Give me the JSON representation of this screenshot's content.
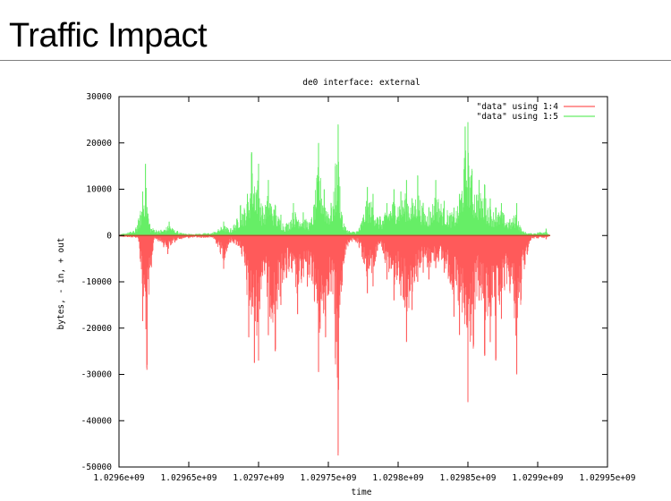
{
  "slide": {
    "title": "Traffic Impact"
  },
  "chart_data": {
    "type": "area",
    "title": "de0 interface: external",
    "xlabel": "time",
    "ylabel": "bytes, - in, + out",
    "xlim": [
      1029600000,
      1029950000
    ],
    "ylim": [
      -50000,
      30000
    ],
    "grid": false,
    "legend_position": "top-right",
    "x_tick_labels": [
      "1.0296e+09",
      "1.02965e+09",
      "1.0297e+09",
      "1.02975e+09",
      "1.0298e+09",
      "1.02985e+09",
      "1.0299e+09",
      "1.02995e+09"
    ],
    "y_tick_labels": [
      "30000",
      "20000",
      "10000",
      "0",
      "-10000",
      "-20000",
      "-30000",
      "-40000",
      "-50000"
    ],
    "y_ticks": [
      30000,
      20000,
      10000,
      0,
      -10000,
      -20000,
      -30000,
      -40000,
      -50000
    ],
    "x_ticks": [
      1029600000,
      1029650000,
      1029700000,
      1029750000,
      1029800000,
      1029850000,
      1029900000,
      1029950000
    ],
    "series": [
      {
        "name": "\"data\" using 1:4",
        "color": "#ff5a5a",
        "peaks": [
          [
            1029600000,
            -300
          ],
          [
            1029614000,
            -700
          ],
          [
            1029617000,
            -18500
          ],
          [
            1029620000,
            -29000
          ],
          [
            1029625000,
            -900
          ],
          [
            1029632000,
            -2500
          ],
          [
            1029635000,
            -4000
          ],
          [
            1029640000,
            -1500
          ],
          [
            1029650000,
            -600
          ],
          [
            1029668000,
            -700
          ],
          [
            1029675000,
            -7200
          ],
          [
            1029680000,
            -1500
          ],
          [
            1029688000,
            -4000
          ],
          [
            1029693000,
            -22000
          ],
          [
            1029697000,
            -27500
          ],
          [
            1029700000,
            -27000
          ],
          [
            1029703000,
            -8000
          ],
          [
            1029707000,
            -21500
          ],
          [
            1029712000,
            -25000
          ],
          [
            1029716000,
            -15000
          ],
          [
            1029720000,
            -9000
          ],
          [
            1029728000,
            -17000
          ],
          [
            1029735000,
            -11000
          ],
          [
            1029740000,
            -14000
          ],
          [
            1029743000,
            -29500
          ],
          [
            1029748000,
            -22000
          ],
          [
            1029752000,
            -12000
          ],
          [
            1029755000,
            -26500
          ],
          [
            1029757000,
            -47500
          ],
          [
            1029760000,
            -10000
          ],
          [
            1029765000,
            -1500
          ],
          [
            1029772000,
            -2500
          ],
          [
            1029778000,
            -12500
          ],
          [
            1029782000,
            -11000
          ],
          [
            1029787000,
            -1500
          ],
          [
            1029792000,
            -9500
          ],
          [
            1029797000,
            -14000
          ],
          [
            1029802000,
            -13000
          ],
          [
            1029806000,
            -23000
          ],
          [
            1029810000,
            -16000
          ],
          [
            1029814000,
            -10000
          ],
          [
            1029818000,
            -8000
          ],
          [
            1029822000,
            -9500
          ],
          [
            1029827000,
            -7000
          ],
          [
            1029833000,
            -8000
          ],
          [
            1029840000,
            -17500
          ],
          [
            1029844000,
            -21500
          ],
          [
            1029850000,
            -36000
          ],
          [
            1029854000,
            -24000
          ],
          [
            1029858000,
            -14000
          ],
          [
            1029862000,
            -26000
          ],
          [
            1029866000,
            -23000
          ],
          [
            1029870000,
            -27000
          ],
          [
            1029874000,
            -18000
          ],
          [
            1029880000,
            -12000
          ],
          [
            1029885000,
            -30000
          ],
          [
            1029888000,
            -14000
          ],
          [
            1029895000,
            -900
          ],
          [
            1029906000,
            -800
          ],
          [
            1029909000,
            0
          ]
        ]
      },
      {
        "name": "\"data\" using 1:5",
        "color": "#66ee66",
        "peaks": [
          [
            1029600000,
            200
          ],
          [
            1029612000,
            1500
          ],
          [
            1029617000,
            9500
          ],
          [
            1029619000,
            15500
          ],
          [
            1029622000,
            2500
          ],
          [
            1029630000,
            1200
          ],
          [
            1029636000,
            3000
          ],
          [
            1029642000,
            1000
          ],
          [
            1029650000,
            400
          ],
          [
            1029668000,
            800
          ],
          [
            1029675000,
            3000
          ],
          [
            1029680000,
            1500
          ],
          [
            1029687000,
            6500
          ],
          [
            1029692000,
            9000
          ],
          [
            1029695000,
            18000
          ],
          [
            1029700000,
            15500
          ],
          [
            1029703000,
            6000
          ],
          [
            1029707000,
            12000
          ],
          [
            1029712000,
            6500
          ],
          [
            1029716000,
            4500
          ],
          [
            1029720000,
            2500
          ],
          [
            1029725000,
            7000
          ],
          [
            1029732000,
            5000
          ],
          [
            1029738000,
            3500
          ],
          [
            1029743000,
            20000
          ],
          [
            1029747000,
            10000
          ],
          [
            1029752000,
            7000
          ],
          [
            1029755000,
            15000
          ],
          [
            1029757000,
            24000
          ],
          [
            1029760000,
            4000
          ],
          [
            1029765000,
            1000
          ],
          [
            1029772000,
            1500
          ],
          [
            1029778000,
            10500
          ],
          [
            1029782000,
            9000
          ],
          [
            1029787000,
            4000
          ],
          [
            1029792000,
            7000
          ],
          [
            1029797000,
            10000
          ],
          [
            1029802000,
            9500
          ],
          [
            1029806000,
            12000
          ],
          [
            1029810000,
            8000
          ],
          [
            1029814000,
            13000
          ],
          [
            1029818000,
            7000
          ],
          [
            1029822000,
            6000
          ],
          [
            1029827000,
            12000
          ],
          [
            1029833000,
            7500
          ],
          [
            1029840000,
            6000
          ],
          [
            1029844000,
            9000
          ],
          [
            1029848000,
            23500
          ],
          [
            1029850000,
            24500
          ],
          [
            1029853000,
            14000
          ],
          [
            1029858000,
            12000
          ],
          [
            1029862000,
            11000
          ],
          [
            1029866000,
            8000
          ],
          [
            1029870000,
            6000
          ],
          [
            1029874000,
            7000
          ],
          [
            1029880000,
            3500
          ],
          [
            1029885000,
            7000
          ],
          [
            1029888000,
            1500
          ],
          [
            1029895000,
            500
          ],
          [
            1029906000,
            1500
          ],
          [
            1029909000,
            0
          ]
        ]
      }
    ]
  }
}
